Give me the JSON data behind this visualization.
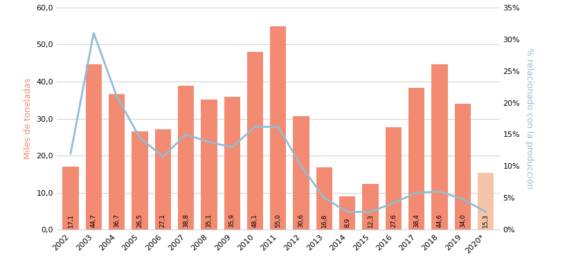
{
  "years": [
    "2002",
    "2003",
    "2004",
    "2005",
    "2006",
    "2007",
    "2008",
    "2009",
    "2010",
    "2011",
    "2012",
    "2013",
    "2014",
    "2015",
    "2016",
    "2017",
    "2018",
    "2019",
    "2020*"
  ],
  "bar_values": [
    17.1,
    44.7,
    36.7,
    26.5,
    27.1,
    38.8,
    35.1,
    35.9,
    48.1,
    55.0,
    30.6,
    16.8,
    8.9,
    12.3,
    27.6,
    38.4,
    44.6,
    34.0,
    15.3
  ],
  "bar_labels": [
    "17,1",
    "44,7",
    "36,7",
    "26,5",
    "27,1",
    "38,8",
    "35,1",
    "35,9",
    "48,1",
    "55,0",
    "30,6",
    "16,8",
    "8,9",
    "12,3",
    "27,6",
    "38,4",
    "44,6",
    "34,0",
    "15,3"
  ],
  "line_values_pct": [
    0.12,
    0.31,
    0.21,
    0.145,
    0.115,
    0.15,
    0.138,
    0.13,
    0.162,
    0.162,
    0.1,
    0.05,
    0.028,
    0.028,
    0.042,
    0.058,
    0.06,
    0.048,
    0.028
  ],
  "bar_color_main": "#F28B72",
  "bar_color_last": "#F5C4A8",
  "line_color": "#92BDD4",
  "ylabel_left": "Miles de toneladas",
  "ylabel_right": "% relacionado con la producción",
  "ylim_left": [
    0,
    60
  ],
  "ylim_right": [
    0.0,
    0.35
  ],
  "yticks_left": [
    0.0,
    10.0,
    20.0,
    30.0,
    40.0,
    50.0,
    60.0
  ],
  "ytick_labels_left": [
    "0,0",
    "10,0",
    "20,0",
    "30,0",
    "40,0",
    "50,0",
    "60,0"
  ],
  "yticks_right": [
    0.0,
    0.05,
    0.1,
    0.15,
    0.2,
    0.25,
    0.3,
    0.35
  ],
  "ytick_labels_right": [
    "0%",
    "5%",
    "10%",
    "15%",
    "20%",
    "25%",
    "30%",
    "35%"
  ],
  "background_color": "#ffffff",
  "grid_color": "#d5d5d5",
  "ylabel_left_color": "#F28B72",
  "ylabel_right_color": "#92BDD4",
  "bar_width": 0.7,
  "line_width": 2.0,
  "bar_label_fontsize": 6.5,
  "axis_label_fontsize": 9,
  "tick_label_fontsize": 8
}
